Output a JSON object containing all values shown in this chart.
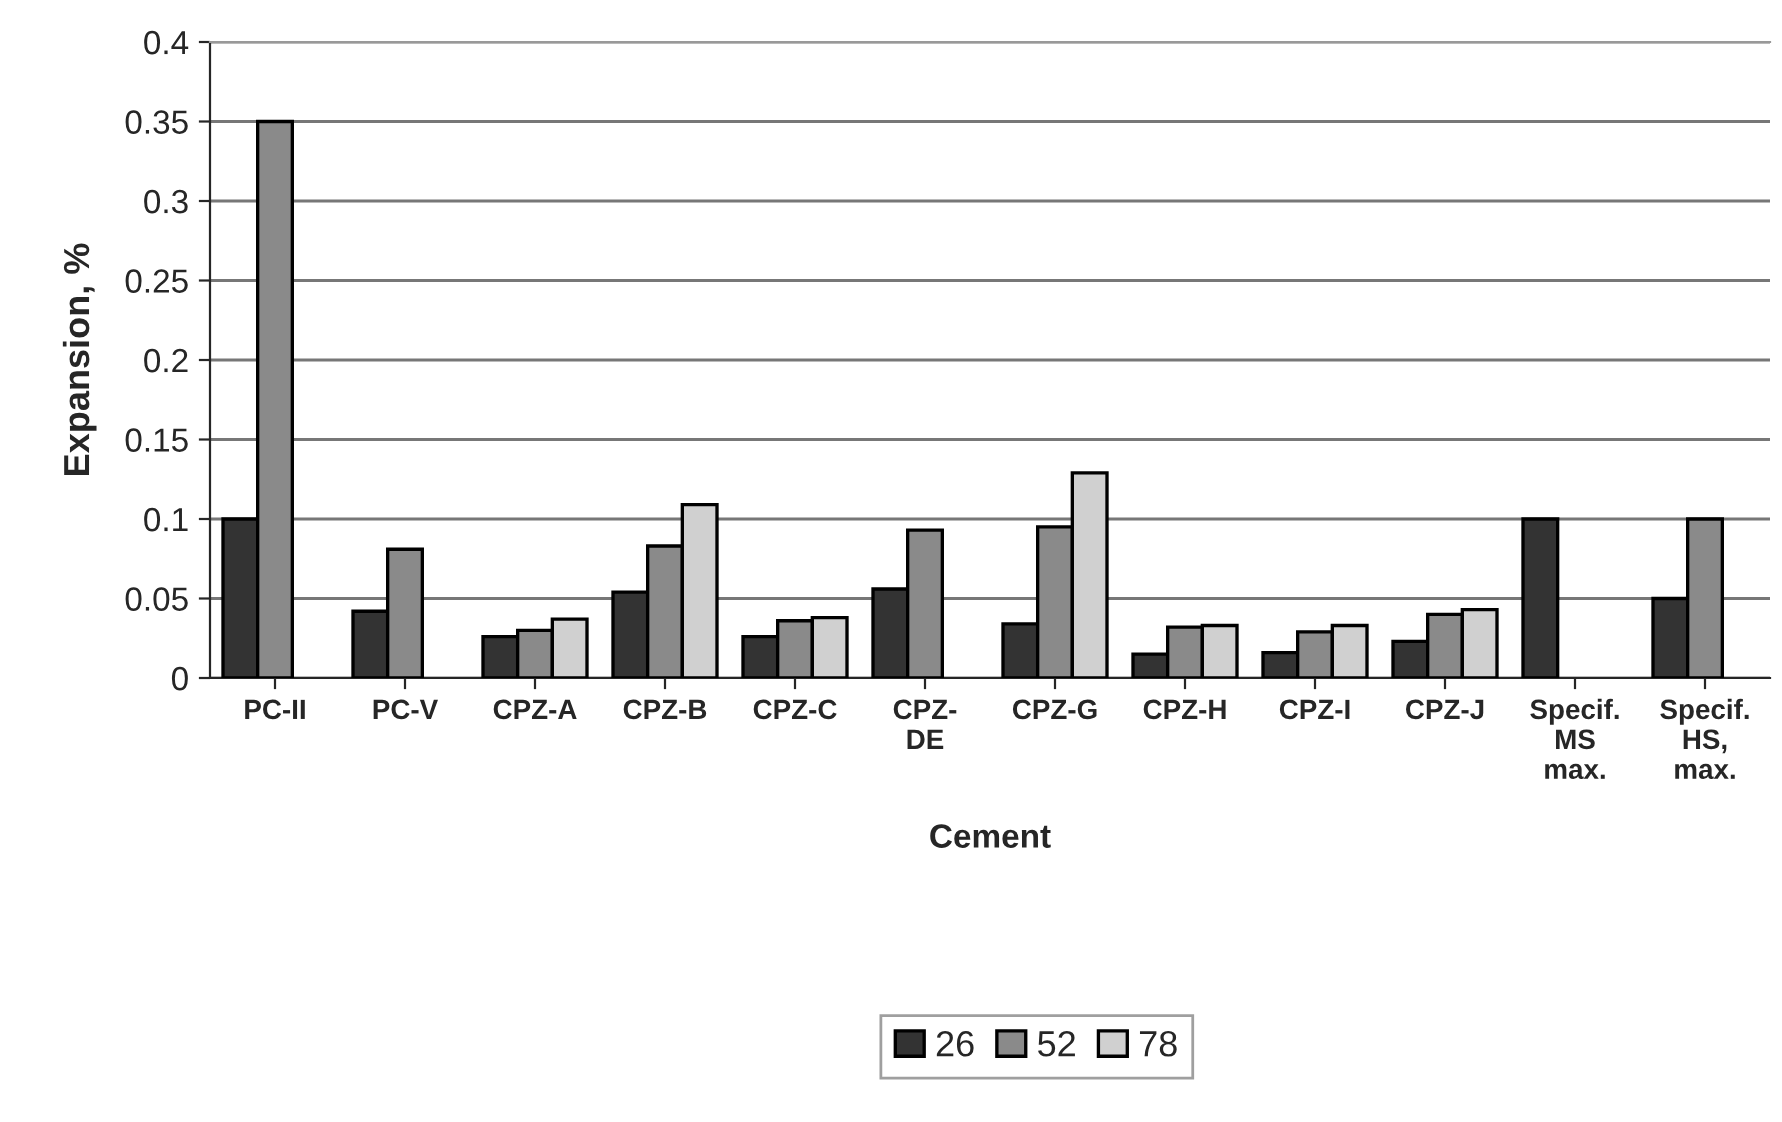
{
  "chart_data": {
    "type": "bar",
    "xlabel": "Cement",
    "ylabel": "Expansion, %",
    "categories": [
      "PC-II",
      "PC-V",
      "CPZ-A",
      "CPZ-B",
      "CPZ-C",
      "CPZ-\nDE",
      "CPZ-G",
      "CPZ-H",
      "CPZ-I",
      "CPZ-J",
      "Specif.\nMS\nmax.",
      "Specif.\nHS,\nmax."
    ],
    "series": [
      {
        "name": "26",
        "color": "#333333",
        "values": [
          0.1,
          0.042,
          0.026,
          0.054,
          0.026,
          0.056,
          0.034,
          0.015,
          0.016,
          0.023,
          0.1,
          0.05
        ]
      },
      {
        "name": "52",
        "color": "#8a8a8a",
        "values": [
          0.35,
          0.081,
          0.03,
          0.083,
          0.036,
          0.093,
          0.095,
          0.032,
          0.029,
          0.04,
          null,
          0.1
        ]
      },
      {
        "name": "78",
        "color": "#d0d0d0",
        "values": [
          null,
          null,
          0.037,
          0.109,
          0.038,
          null,
          0.129,
          0.033,
          0.033,
          0.043,
          null,
          null
        ]
      }
    ],
    "ylim": [
      0,
      0.4
    ],
    "yticks": [
      0,
      0.05,
      0.1,
      0.15,
      0.2,
      0.25,
      0.3,
      0.35,
      0.4
    ],
    "grid": "y",
    "legend": "bottom"
  }
}
